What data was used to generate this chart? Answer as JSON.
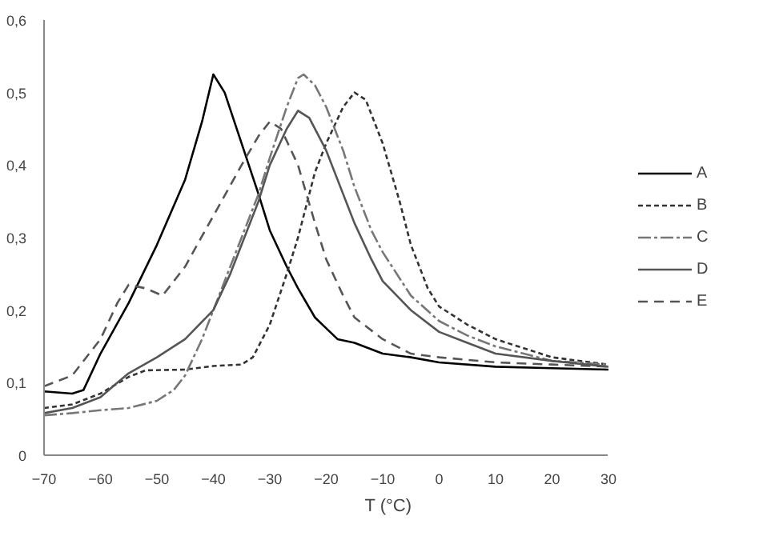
{
  "chart_data": {
    "type": "line",
    "xlabel": "T (°C)",
    "xlim": [
      -70,
      30
    ],
    "xticks": [
      -70,
      -60,
      -50,
      -40,
      -30,
      -20,
      -10,
      0,
      10,
      20,
      30
    ],
    "ylim": [
      0,
      0.6
    ],
    "yticks": [
      {
        "value": 0,
        "label": "0"
      },
      {
        "value": 0.1,
        "label": "0,1"
      },
      {
        "value": 0.2,
        "label": "0,2"
      },
      {
        "value": 0.3,
        "label": "0,3"
      },
      {
        "value": 0.4,
        "label": "0,4"
      },
      {
        "value": 0.5,
        "label": "0,5"
      },
      {
        "value": 0.6,
        "label": "0,6"
      }
    ],
    "grid": false,
    "legend": "right",
    "series": [
      {
        "name": "A",
        "color": "#000000",
        "line_style": "solid",
        "x": [
          -70,
          -65,
          -63,
          -60,
          -55,
          -50,
          -45,
          -42,
          -40,
          -38,
          -35,
          -32,
          -30,
          -27,
          -25,
          -22,
          -20,
          -18,
          -15,
          -10,
          -5,
          0,
          10,
          20,
          30
        ],
        "values": [
          0.088,
          0.085,
          0.09,
          0.14,
          0.21,
          0.29,
          0.38,
          0.46,
          0.525,
          0.5,
          0.43,
          0.36,
          0.31,
          0.26,
          0.23,
          0.19,
          0.175,
          0.16,
          0.155,
          0.14,
          0.135,
          0.128,
          0.122,
          0.12,
          0.118
        ]
      },
      {
        "name": "B",
        "color": "#333333",
        "line_style": "dotted",
        "x": [
          -70,
          -65,
          -60,
          -55,
          -52,
          -45,
          -40,
          -35,
          -33,
          -30,
          -27,
          -25,
          -22,
          -20,
          -17,
          -15,
          -13,
          -10,
          -7,
          -5,
          -2,
          0,
          5,
          10,
          20,
          30
        ],
        "values": [
          0.065,
          0.07,
          0.085,
          0.108,
          0.117,
          0.118,
          0.123,
          0.125,
          0.135,
          0.18,
          0.25,
          0.3,
          0.39,
          0.43,
          0.48,
          0.5,
          0.49,
          0.43,
          0.35,
          0.29,
          0.23,
          0.205,
          0.18,
          0.16,
          0.135,
          0.125
        ]
      },
      {
        "name": "C",
        "color": "#777777",
        "line_style": "dashdot",
        "x": [
          -70,
          -65,
          -60,
          -55,
          -50,
          -47,
          -45,
          -42,
          -40,
          -37,
          -35,
          -32,
          -30,
          -27,
          -25,
          -24,
          -22,
          -20,
          -17,
          -15,
          -12,
          -10,
          -5,
          0,
          5,
          10,
          20,
          30
        ],
        "values": [
          0.055,
          0.058,
          0.062,
          0.065,
          0.075,
          0.09,
          0.11,
          0.16,
          0.2,
          0.26,
          0.3,
          0.36,
          0.41,
          0.48,
          0.52,
          0.525,
          0.51,
          0.48,
          0.42,
          0.37,
          0.31,
          0.28,
          0.22,
          0.185,
          0.165,
          0.15,
          0.13,
          0.125
        ]
      },
      {
        "name": "D",
        "color": "#555555",
        "line_style": "solid",
        "x": [
          -70,
          -65,
          -60,
          -57,
          -55,
          -50,
          -45,
          -40,
          -37,
          -35,
          -32,
          -30,
          -27,
          -25,
          -23,
          -20,
          -17,
          -15,
          -12,
          -10,
          -5,
          0,
          5,
          10,
          20,
          30
        ],
        "values": [
          0.058,
          0.065,
          0.08,
          0.1,
          0.113,
          0.135,
          0.16,
          0.2,
          0.25,
          0.29,
          0.35,
          0.4,
          0.45,
          0.475,
          0.465,
          0.42,
          0.36,
          0.32,
          0.27,
          0.24,
          0.2,
          0.17,
          0.155,
          0.14,
          0.13,
          0.122
        ]
      },
      {
        "name": "E",
        "color": "#555555",
        "line_style": "dashed",
        "x": [
          -70,
          -65,
          -60,
          -57,
          -55,
          -52,
          -49,
          -45,
          -40,
          -35,
          -32,
          -30,
          -28,
          -25,
          -22,
          -20,
          -17,
          -15,
          -10,
          -5,
          0,
          10,
          20,
          30
        ],
        "values": [
          0.095,
          0.11,
          0.16,
          0.21,
          0.235,
          0.23,
          0.22,
          0.26,
          0.33,
          0.4,
          0.44,
          0.46,
          0.45,
          0.4,
          0.32,
          0.27,
          0.22,
          0.19,
          0.16,
          0.14,
          0.135,
          0.128,
          0.125,
          0.122
        ]
      }
    ]
  }
}
